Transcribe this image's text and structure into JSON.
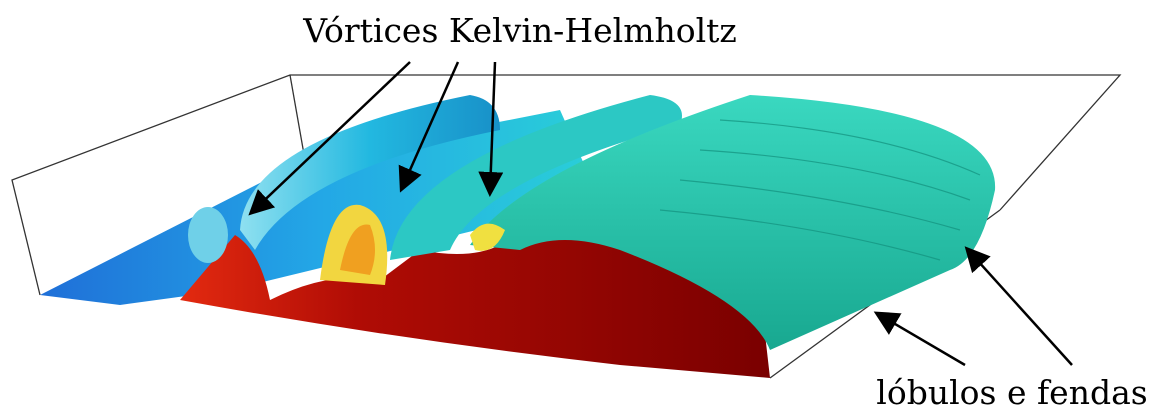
{
  "labels": {
    "top": "Vórtices Kelvin-Helmholtz",
    "bottom": "lóbulos e fendas"
  }
}
